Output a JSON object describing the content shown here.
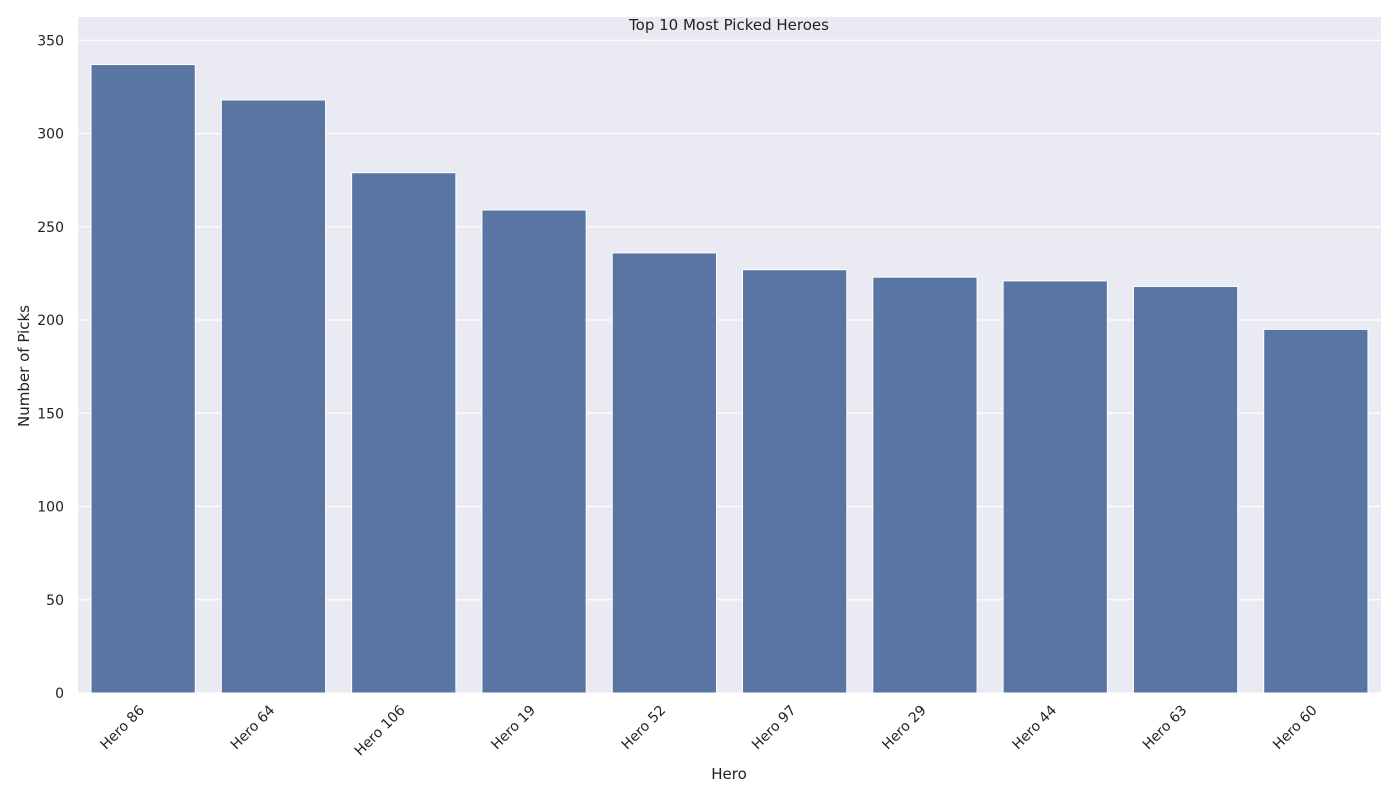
{
  "chart_data": {
    "type": "bar",
    "title": "Top 10 Most Picked Heroes",
    "xlabel": "Hero",
    "ylabel": "Number of Picks",
    "categories": [
      "Hero 86",
      "Hero 64",
      "Hero 106",
      "Hero 19",
      "Hero 52",
      "Hero 97",
      "Hero 29",
      "Hero 44",
      "Hero 63",
      "Hero 60"
    ],
    "values": [
      337,
      318,
      279,
      259,
      236,
      227,
      223,
      221,
      218,
      195
    ],
    "ylim": [
      0,
      350
    ],
    "yticks": [
      0,
      50,
      100,
      150,
      200,
      250,
      300,
      350
    ],
    "grid": true,
    "legend": "none",
    "colors": {
      "bar": "#5975a4",
      "plot_background": "#eaeaf2",
      "grid": "#ffffff",
      "text": "#222222"
    }
  }
}
